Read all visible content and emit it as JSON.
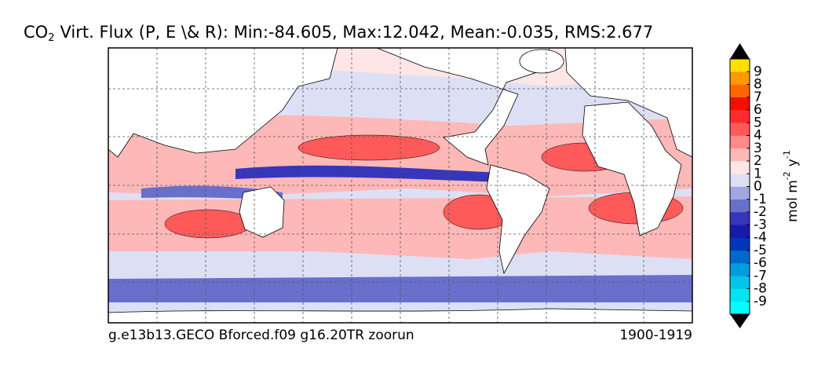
{
  "title": {
    "main": "CO",
    "subscript": "2",
    "rest": "Virt. Flux (P, E \\& R): Min:-84.605, Max:12.042, Mean:-0.035, RMS:2.677"
  },
  "footer": {
    "left": "g.e13b13.GECO Bforced.f09 g16.20TR zoorun",
    "right": "1900-1919"
  },
  "colorbar": {
    "label": {
      "base": "mol m",
      "exp1": "-2",
      "mid": "y",
      "exp2": "-1"
    },
    "ticks": [
      -9,
      -8,
      -7,
      -6,
      -5,
      -4,
      -3,
      -2,
      -1,
      0,
      1,
      2,
      3,
      4,
      5,
      6,
      7,
      8,
      9
    ],
    "colors": [
      "#00ffff",
      "#00e5f0",
      "#00c4e8",
      "#009ddd",
      "#0068cc",
      "#0036bb",
      "#1a1aa8",
      "#3636bb",
      "#6870cc",
      "#a0a6e0",
      "#dde0f5",
      "#ffe6e6",
      "#ffb8b8",
      "#ff8a8a",
      "#ff5a5a",
      "#ff2c2c",
      "#ee1100",
      "#ff6600",
      "#ff9900",
      "#ffe000"
    ],
    "extend_color": "#000000"
  }
}
